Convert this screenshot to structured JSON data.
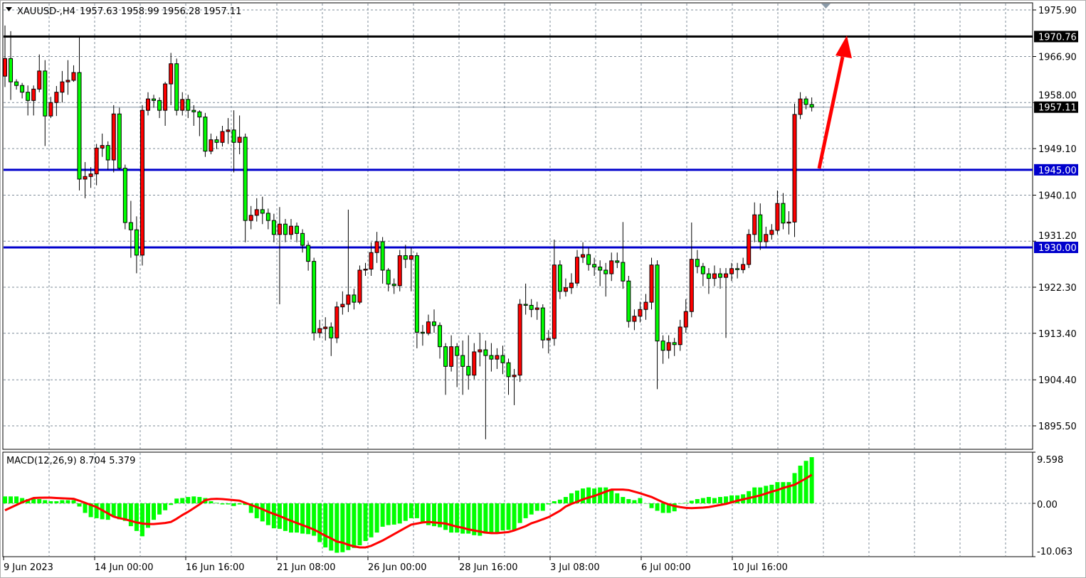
{
  "header": {
    "symbol": "XAUUSD-,H4",
    "ohlc_text": "1957.63 1958.99 1956.28 1957.11",
    "menu_icon": "triangle-down-icon"
  },
  "indicator": {
    "label": "MACD(12,26,9) 8.704 5.379",
    "axis_labels": [
      "9.598",
      "0.00",
      "-10.063"
    ]
  },
  "colors": {
    "bull_candle": "#ff0000",
    "bear_candle": "#00ff00",
    "wick": "#000000",
    "grid": "#7f8c9a",
    "macd_histogram": "#00ff00",
    "signal_line": "#ff0000",
    "resistance_line": "#000000",
    "support_line": "#0000cc",
    "arrow": "#ff0000"
  },
  "chart_data": {
    "type": "candlestick",
    "symbol": "XAUUSD-",
    "timeframe": "H4",
    "ylim": [
      1895.5,
      1975.9
    ],
    "grid": true,
    "price_ticks": [
      "1975.90",
      "1966.90",
      "1958.00",
      "1949.10",
      "1940.10",
      "1931.20",
      "1922.30",
      "1913.40",
      "1904.40",
      "1895.50"
    ],
    "time_labels": [
      "9 Jun 2023",
      "14 Jun 00:00",
      "16 Jun 16:00",
      "21 Jun 08:00",
      "26 Jun 00:00",
      "28 Jun 16:00",
      "3 Jul 08:00",
      "6 Jul 00:00",
      "10 Jul 16:00"
    ],
    "levels": [
      {
        "price": 1970.76,
        "label": "1970.76",
        "color": "#000000"
      },
      {
        "price": 1945.0,
        "label": "1945.00",
        "color": "#0000cc"
      },
      {
        "price": 1930.0,
        "label": "1930.00",
        "color": "#0000cc"
      }
    ],
    "bid": {
      "price": 1957.11,
      "label": "1957.11"
    },
    "ohlc": [
      [
        1963.1,
        1972.9,
        1961.0,
        1966.5
      ],
      [
        1966.5,
        1971.8,
        1958.5,
        1962.0
      ],
      [
        1962.0,
        1962.5,
        1960.5,
        1961.3
      ],
      [
        1961.3,
        1961.8,
        1958.8,
        1960.0
      ],
      [
        1960.0,
        1961.3,
        1955.5,
        1958.4
      ],
      [
        1958.4,
        1961.3,
        1955.5,
        1960.6
      ],
      [
        1960.6,
        1967.3,
        1960.0,
        1964.1
      ],
      [
        1964.1,
        1966.2,
        1949.6,
        1955.4
      ],
      [
        1955.4,
        1959.1,
        1955.0,
        1958.0
      ],
      [
        1958.0,
        1961.2,
        1955.4,
        1960.0
      ],
      [
        1960.0,
        1964.1,
        1958.0,
        1962.0
      ],
      [
        1962.0,
        1966.2,
        1959.5,
        1962.3
      ],
      [
        1962.3,
        1965.2,
        1962.0,
        1963.8
      ],
      [
        1963.8,
        1970.8,
        1941.0,
        1943.2
      ],
      [
        1943.2,
        1946.5,
        1939.5,
        1943.7
      ],
      [
        1943.7,
        1945.5,
        1941.5,
        1944.2
      ],
      [
        1944.2,
        1950.0,
        1942.0,
        1949.2
      ],
      [
        1949.2,
        1952.0,
        1947.5,
        1949.7
      ],
      [
        1949.7,
        1950.5,
        1945.0,
        1946.9
      ],
      [
        1946.9,
        1957.5,
        1944.5,
        1955.8
      ],
      [
        1955.8,
        1957.0,
        1945.0,
        1945.3
      ],
      [
        1945.3,
        1946.0,
        1933.5,
        1934.8
      ],
      [
        1934.8,
        1939.0,
        1928.0,
        1933.4
      ],
      [
        1933.4,
        1936.0,
        1925.0,
        1928.5
      ],
      [
        1928.5,
        1957.5,
        1926.5,
        1956.5
      ],
      [
        1956.5,
        1960.0,
        1955.5,
        1958.7
      ],
      [
        1958.7,
        1959.5,
        1957.0,
        1958.4
      ],
      [
        1958.4,
        1959.0,
        1955.0,
        1956.5
      ],
      [
        1956.5,
        1962.0,
        1953.5,
        1961.6
      ],
      [
        1961.6,
        1967.6,
        1957.5,
        1965.5
      ],
      [
        1965.5,
        1966.5,
        1955.5,
        1956.5
      ],
      [
        1956.5,
        1960.0,
        1955.5,
        1958.6
      ],
      [
        1958.6,
        1959.5,
        1955.0,
        1956.5
      ],
      [
        1956.5,
        1957.5,
        1953.5,
        1956.2
      ],
      [
        1956.2,
        1956.5,
        1951.5,
        1955.2
      ],
      [
        1955.2,
        1956.0,
        1947.5,
        1948.6
      ],
      [
        1948.6,
        1952.0,
        1948.0,
        1950.8
      ],
      [
        1950.8,
        1951.5,
        1949.0,
        1950.3
      ],
      [
        1950.3,
        1953.5,
        1949.5,
        1952.4
      ],
      [
        1952.4,
        1955.0,
        1950.0,
        1952.7
      ],
      [
        1952.7,
        1956.5,
        1944.5,
        1950.3
      ],
      [
        1950.3,
        1955.5,
        1948.0,
        1951.3
      ],
      [
        1951.3,
        1952.0,
        1931.0,
        1935.2
      ],
      [
        1935.2,
        1938.0,
        1933.5,
        1936.2
      ],
      [
        1936.2,
        1939.5,
        1935.0,
        1937.3
      ],
      [
        1937.3,
        1939.8,
        1934.5,
        1936.6
      ],
      [
        1936.6,
        1937.5,
        1933.5,
        1935.2
      ],
      [
        1935.2,
        1936.5,
        1931.0,
        1932.5
      ],
      [
        1932.5,
        1937.8,
        1919.0,
        1934.5
      ],
      [
        1934.5,
        1935.5,
        1931.0,
        1932.5
      ],
      [
        1932.5,
        1935.5,
        1931.5,
        1934.1
      ],
      [
        1934.1,
        1934.8,
        1931.0,
        1932.7
      ],
      [
        1932.7,
        1933.5,
        1929.0,
        1930.4
      ],
      [
        1930.4,
        1931.0,
        1925.5,
        1927.3
      ],
      [
        1927.3,
        1928.0,
        1912.0,
        1913.5
      ],
      [
        1913.5,
        1916.0,
        1912.5,
        1914.3
      ],
      [
        1914.3,
        1916.5,
        1912.0,
        1914.6
      ],
      [
        1914.6,
        1915.5,
        1909.0,
        1912.5
      ],
      [
        1912.5,
        1919.5,
        1911.5,
        1918.5
      ],
      [
        1918.5,
        1921.5,
        1917.0,
        1919.0
      ],
      [
        1919.0,
        1937.3,
        1917.5,
        1920.8
      ],
      [
        1920.8,
        1922.0,
        1918.0,
        1919.4
      ],
      [
        1919.4,
        1926.5,
        1919.0,
        1925.6
      ],
      [
        1925.6,
        1927.0,
        1924.5,
        1925.8
      ],
      [
        1925.8,
        1931.0,
        1924.5,
        1929.0
      ],
      [
        1929.0,
        1933.0,
        1927.0,
        1931.1
      ],
      [
        1931.1,
        1932.0,
        1923.0,
        1925.6
      ],
      [
        1925.6,
        1926.0,
        1921.5,
        1922.9
      ],
      [
        1922.9,
        1924.0,
        1921.0,
        1922.6
      ],
      [
        1922.6,
        1929.5,
        1921.5,
        1928.4
      ],
      [
        1928.4,
        1930.5,
        1926.0,
        1927.7
      ],
      [
        1927.7,
        1930.0,
        1921.5,
        1928.4
      ],
      [
        1928.4,
        1929.0,
        1910.5,
        1913.6
      ],
      [
        1913.6,
        1915.0,
        1911.0,
        1913.4
      ],
      [
        1913.4,
        1917.0,
        1913.0,
        1915.6
      ],
      [
        1915.6,
        1918.0,
        1913.5,
        1914.9
      ],
      [
        1914.9,
        1915.5,
        1908.5,
        1910.8
      ],
      [
        1910.8,
        1911.5,
        1901.5,
        1907.0
      ],
      [
        1907.0,
        1913.0,
        1906.0,
        1910.8
      ],
      [
        1910.8,
        1911.5,
        1903.0,
        1909.1
      ],
      [
        1909.1,
        1912.0,
        1901.5,
        1907.0
      ],
      [
        1907.0,
        1913.0,
        1902.5,
        1905.3
      ],
      [
        1905.3,
        1911.5,
        1904.5,
        1909.8
      ],
      [
        1909.8,
        1913.5,
        1907.0,
        1910.2
      ],
      [
        1910.2,
        1912.0,
        1892.9,
        1909.1
      ],
      [
        1909.1,
        1911.5,
        1906.0,
        1908.4
      ],
      [
        1908.4,
        1910.5,
        1906.5,
        1909.1
      ],
      [
        1909.1,
        1911.0,
        1905.5,
        1907.7
      ],
      [
        1907.7,
        1908.5,
        1901.5,
        1905.0
      ],
      [
        1905.0,
        1906.5,
        1899.5,
        1905.3
      ],
      [
        1905.3,
        1920.0,
        1904.0,
        1919.0
      ],
      [
        1919.0,
        1923.0,
        1917.0,
        1918.8
      ],
      [
        1918.8,
        1920.0,
        1916.5,
        1918.0
      ],
      [
        1918.0,
        1919.5,
        1916.0,
        1918.3
      ],
      [
        1918.3,
        1919.0,
        1910.5,
        1912.1
      ],
      [
        1912.1,
        1914.0,
        1909.5,
        1912.4
      ],
      [
        1912.4,
        1931.5,
        1911.0,
        1926.6
      ],
      [
        1926.6,
        1927.5,
        1920.0,
        1921.5
      ],
      [
        1921.5,
        1924.0,
        1920.5,
        1922.2
      ],
      [
        1922.2,
        1925.0,
        1921.0,
        1923.1
      ],
      [
        1923.1,
        1929.5,
        1922.5,
        1928.1
      ],
      [
        1928.1,
        1931.0,
        1927.0,
        1928.6
      ],
      [
        1928.6,
        1930.0,
        1925.5,
        1926.7
      ],
      [
        1926.7,
        1928.0,
        1924.5,
        1926.2
      ],
      [
        1926.2,
        1927.5,
        1922.5,
        1925.6
      ],
      [
        1925.6,
        1927.0,
        1920.5,
        1924.9
      ],
      [
        1924.9,
        1929.0,
        1923.5,
        1927.4
      ],
      [
        1927.4,
        1929.0,
        1926.0,
        1927.1
      ],
      [
        1927.1,
        1934.9,
        1922.0,
        1923.5
      ],
      [
        1923.5,
        1924.5,
        1914.5,
        1915.7
      ],
      [
        1915.7,
        1918.0,
        1914.0,
        1916.7
      ],
      [
        1916.7,
        1919.5,
        1915.5,
        1918.0
      ],
      [
        1918.0,
        1921.0,
        1916.0,
        1919.4
      ],
      [
        1919.4,
        1928.0,
        1918.0,
        1926.6
      ],
      [
        1926.6,
        1927.5,
        1902.6,
        1911.9
      ],
      [
        1911.9,
        1913.0,
        1907.5,
        1910.1
      ],
      [
        1910.1,
        1913.0,
        1908.5,
        1911.6
      ],
      [
        1911.6,
        1912.5,
        1909.0,
        1911.2
      ],
      [
        1911.2,
        1916.0,
        1910.0,
        1914.6
      ],
      [
        1914.6,
        1920.0,
        1913.5,
        1917.6
      ],
      [
        1917.6,
        1934.8,
        1916.5,
        1927.7
      ],
      [
        1927.7,
        1929.5,
        1925.0,
        1926.3
      ],
      [
        1926.3,
        1927.0,
        1922.5,
        1924.9
      ],
      [
        1924.9,
        1926.0,
        1921.0,
        1924.0
      ],
      [
        1924.0,
        1926.5,
        1922.5,
        1924.9
      ],
      [
        1924.9,
        1926.0,
        1922.0,
        1924.2
      ],
      [
        1924.2,
        1926.0,
        1912.5,
        1924.9
      ],
      [
        1924.9,
        1927.0,
        1923.5,
        1925.9
      ],
      [
        1925.9,
        1927.0,
        1924.0,
        1925.7
      ],
      [
        1925.7,
        1928.0,
        1925.0,
        1926.7
      ],
      [
        1926.7,
        1933.5,
        1926.0,
        1932.5
      ],
      [
        1932.5,
        1938.7,
        1931.0,
        1936.3
      ],
      [
        1936.3,
        1938.5,
        1929.5,
        1931.1
      ],
      [
        1931.1,
        1934.0,
        1930.0,
        1932.5
      ],
      [
        1932.5,
        1934.5,
        1931.5,
        1933.3
      ],
      [
        1933.3,
        1941.0,
        1932.5,
        1938.5
      ],
      [
        1938.5,
        1940.5,
        1933.5,
        1934.7
      ],
      [
        1934.7,
        1937.0,
        1932.5,
        1934.9
      ],
      [
        1934.9,
        1957.8,
        1932.0,
        1955.7
      ],
      [
        1955.7,
        1960.0,
        1954.8,
        1958.7
      ],
      [
        1958.7,
        1959.2,
        1956.7,
        1957.63
      ],
      [
        1957.63,
        1958.99,
        1956.28,
        1957.11
      ]
    ],
    "macd": {
      "params": "12,26,9",
      "ylim": [
        -10.063,
        9.598
      ],
      "histogram": [
        1.3,
        1.3,
        1.3,
        1.0,
        0.8,
        0.8,
        0.8,
        0.6,
        0.4,
        0.4,
        0.6,
        0.6,
        0.6,
        -0.6,
        -1.8,
        -2.6,
        -2.8,
        -3.0,
        -3.1,
        -2.6,
        -3.0,
        -3.3,
        -4.3,
        -5.2,
        -6.2,
        -4.6,
        -3.1,
        -2.1,
        -1.3,
        -0.3,
        0.9,
        1.0,
        1.2,
        1.3,
        1.2,
        1.0,
        0.4,
        0.1,
        -0.2,
        -0.2,
        -0.5,
        -0.2,
        -0.3,
        -1.8,
        -2.8,
        -3.4,
        -4.1,
        -4.7,
        -4.8,
        -5.2,
        -5.5,
        -5.5,
        -5.7,
        -5.8,
        -6.1,
        -7.3,
        -8.3,
        -8.9,
        -9.3,
        -9.2,
        -8.8,
        -8.4,
        -7.9,
        -7.1,
        -6.4,
        -5.5,
        -4.4,
        -4.1,
        -4.0,
        -3.8,
        -3.3,
        -2.8,
        -2.8,
        -3.7,
        -4.1,
        -4.3,
        -4.5,
        -5.0,
        -5.5,
        -5.5,
        -5.7,
        -5.7,
        -6.0,
        -6.1,
        -5.7,
        -5.6,
        -5.6,
        -5.1,
        -5.0,
        -5.0,
        -3.7,
        -2.8,
        -2.1,
        -1.4,
        -1.4,
        -0.2,
        0.4,
        0.7,
        1.2,
        1.9,
        2.4,
        2.8,
        3.0,
        2.8,
        3.0,
        3.0,
        2.7,
        1.9,
        1.2,
        0.8,
        0.6,
        1.0,
        0,
        -0.9,
        -1.4,
        -1.8,
        -1.8,
        -1.5,
        0,
        0.1,
        0.5,
        0.8,
        1.0,
        1.2,
        1.0,
        1.2,
        1.3,
        1.5,
        1.5,
        1.7,
        2.3,
        3.0,
        3.0,
        3.3,
        3.5,
        4.0,
        4.0,
        4.0,
        5.7,
        7.1,
        8.0,
        8.704
      ],
      "signal": [
        -1.3,
        -0.8,
        -0.3,
        0.2,
        0.6,
        1.0,
        1.05,
        1.07,
        1.07,
        1.0,
        0.95,
        0.9,
        0.85,
        0.5,
        0.1,
        -0.3,
        -0.7,
        -1.3,
        -1.9,
        -2.5,
        -2.8,
        -3.0,
        -3.3,
        -3.6,
        -3.8,
        -3.9,
        -3.9,
        -3.8,
        -3.7,
        -3.5,
        -2.9,
        -2.2,
        -1.6,
        -0.9,
        -0.2,
        0.6,
        0.8,
        0.85,
        0.8,
        0.7,
        0.6,
        0.5,
        0.1,
        -0.3,
        -0.7,
        -1.1,
        -1.6,
        -2.0,
        -2.4,
        -2.85,
        -3.3,
        -3.7,
        -4.1,
        -4.5,
        -4.95,
        -5.5,
        -6.1,
        -6.6,
        -7.2,
        -7.4,
        -7.8,
        -8.1,
        -8.3,
        -8.3,
        -8.0,
        -7.5,
        -7.0,
        -6.4,
        -5.8,
        -5.2,
        -4.6,
        -4.0,
        -3.8,
        -3.6,
        -3.5,
        -3.6,
        -3.7,
        -3.8,
        -4.1,
        -4.4,
        -4.6,
        -4.9,
        -5.1,
        -5.3,
        -5.5,
        -5.6,
        -5.6,
        -5.5,
        -5.4,
        -5.1,
        -4.7,
        -4.3,
        -3.75,
        -3.4,
        -3.0,
        -2.6,
        -2.0,
        -1.4,
        -0.6,
        -0.1,
        0.3,
        0.75,
        1.1,
        1.4,
        1.8,
        2.2,
        2.6,
        2.6,
        2.6,
        2.5,
        2.2,
        1.9,
        1.55,
        1.2,
        0.7,
        0.2,
        -0.2,
        -0.5,
        -0.7,
        -0.85,
        -0.9,
        -0.85,
        -0.8,
        -0.7,
        -0.5,
        -0.3,
        -0.1,
        0.2,
        0.5,
        0.75,
        1.0,
        1.25,
        1.5,
        1.85,
        2.2,
        2.5,
        2.9,
        3.2,
        3.5,
        4.1,
        4.7,
        5.379
      ]
    }
  }
}
